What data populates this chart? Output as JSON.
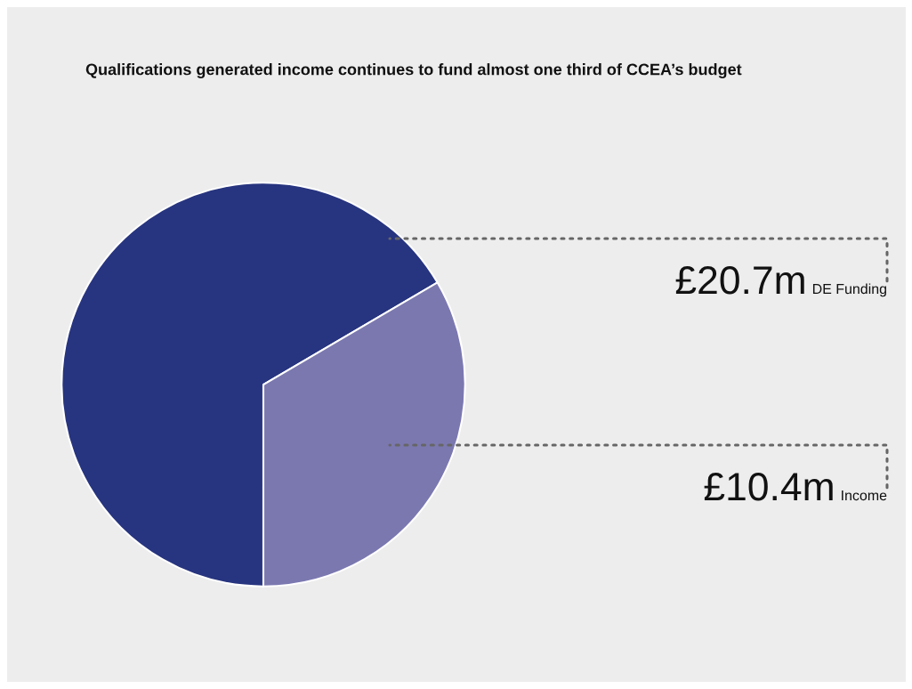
{
  "chart_data": {
    "type": "pie",
    "title": "Qualifications generated income continues to fund almost one third of CCEA’s budget",
    "categories": [
      "DE Funding",
      "Income"
    ],
    "values": [
      20.7,
      10.4
    ],
    "colors": [
      "#27347f",
      "#7b78b0"
    ],
    "value_labels": [
      "£20.7m",
      "£10.4m"
    ]
  }
}
